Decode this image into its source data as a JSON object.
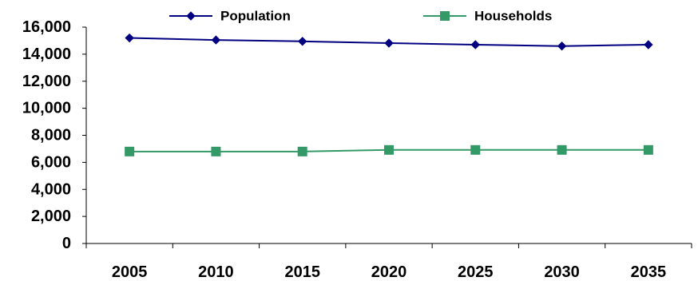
{
  "chart_data": {
    "type": "line",
    "categories": [
      "2005",
      "2010",
      "2015",
      "2020",
      "2025",
      "2030",
      "2035"
    ],
    "series": [
      {
        "name": "Population",
        "color": "#000080",
        "marker": "diamond",
        "values": [
          15200,
          15050,
          14950,
          14820,
          14700,
          14600,
          14700
        ]
      },
      {
        "name": "Households",
        "color": "#339966",
        "marker": "square",
        "values": [
          6800,
          6800,
          6800,
          6920,
          6920,
          6920,
          6920
        ]
      }
    ],
    "ylim": [
      0,
      16000
    ],
    "ytick_step": 2000,
    "ytick_labels": [
      "0",
      "2,000",
      "4,000",
      "6,000",
      "8,000",
      "10,000",
      "12,000",
      "14,000",
      "16,000"
    ],
    "grid": false,
    "legend_position": "top"
  }
}
